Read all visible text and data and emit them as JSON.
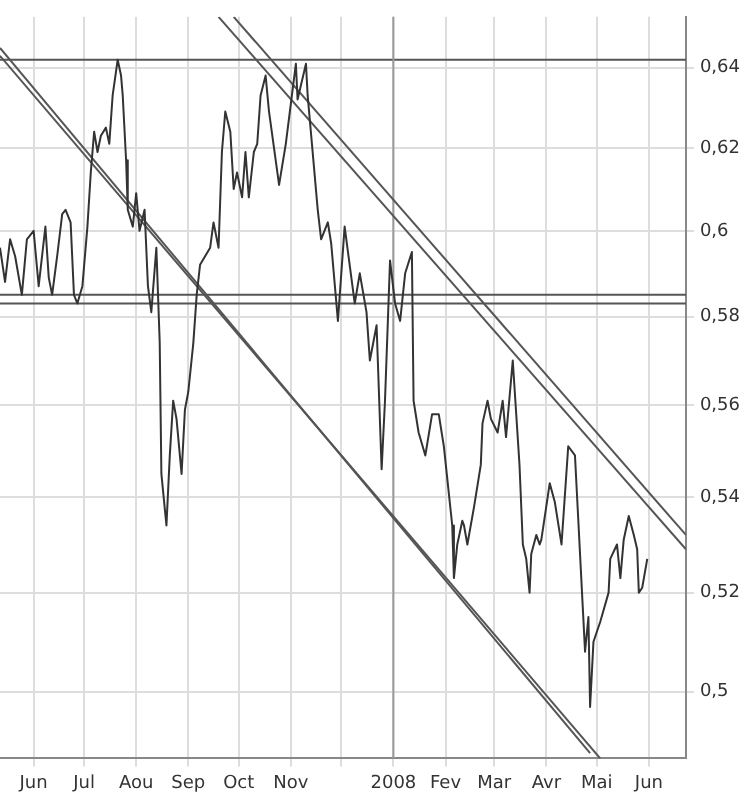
{
  "chart_data": {
    "type": "line",
    "xlim": [
      "2007-05-12",
      "2008-06-23"
    ],
    "xticks": [
      {
        "value": "2007-06-01",
        "label": "Jun"
      },
      {
        "value": "2007-07-01",
        "label": "Jul"
      },
      {
        "value": "2007-08-01",
        "label": "Aou"
      },
      {
        "value": "2007-09-01",
        "label": "Sep"
      },
      {
        "value": "2007-10-01",
        "label": "Oct"
      },
      {
        "value": "2007-11-01",
        "label": "Nov"
      },
      {
        "value": "2007-12-01",
        "label": null
      },
      {
        "value": "2008-01-01",
        "label": "2008"
      },
      {
        "value": "2008-02-01",
        "label": "Fev"
      },
      {
        "value": "2008-03-01",
        "label": "Mar"
      },
      {
        "value": "2008-04-01",
        "label": "Avr"
      },
      {
        "value": "2008-05-01",
        "label": "Mai"
      },
      {
        "value": "2008-06-01",
        "label": "Jun"
      }
    ],
    "ylim": [
      0.487,
      0.653
    ],
    "yticks": [
      {
        "value": 0.5,
        "label": "0,5"
      },
      {
        "value": 0.52,
        "label": "0,52"
      },
      {
        "value": 0.54,
        "label": "0,54"
      },
      {
        "value": 0.56,
        "label": "0,56"
      },
      {
        "value": 0.58,
        "label": "0,58"
      },
      {
        "value": 0.6,
        "label": "0,6"
      },
      {
        "value": 0.62,
        "label": "0,62"
      },
      {
        "value": 0.64,
        "label": "0,64"
      }
    ],
    "log": true,
    "grid": true,
    "legend": false,
    "marker": "none",
    "line_style": "solid",
    "ref_lines": [
      {
        "axis": "y",
        "value": 0.642,
        "color": "#555555"
      },
      {
        "axis": "y",
        "value": 0.585,
        "color": "#555555"
      },
      {
        "axis": "y",
        "value": 0.583,
        "color": "#555555"
      },
      {
        "axis": "x",
        "value": "2008-01-01",
        "color": "#999999"
      }
    ],
    "series": [
      {
        "color": "#333333",
        "x": [
          "2007-05-12",
          "2007-05-15",
          "2007-05-18",
          "2007-05-21",
          "2007-05-25",
          "2007-05-28",
          "2007-06-01",
          "2007-06-04",
          "2007-06-08",
          "2007-06-10",
          "2007-06-12",
          "2007-06-15",
          "2007-06-18",
          "2007-06-20",
          "2007-06-23",
          "2007-06-25",
          "2007-06-27",
          "2007-06-30",
          "2007-07-03",
          "2007-07-05",
          "2007-07-07",
          "2007-07-09",
          "2007-07-11",
          "2007-07-14",
          "2007-07-16",
          "2007-07-18",
          "2007-07-21",
          "2007-07-23",
          "2007-07-24",
          "2007-07-26",
          "2007-07-27",
          "2007-07-30",
          "2007-08-01",
          "2007-08-03",
          "2007-08-06",
          "2007-08-08",
          "2007-08-10",
          "2007-08-13",
          "2007-08-15",
          "2007-08-16",
          "2007-08-19",
          "2007-08-21",
          "2007-08-23",
          "2007-08-25",
          "2007-08-28",
          "2007-08-30",
          "2007-09-01",
          "2007-09-04",
          "2007-09-06",
          "2007-09-08",
          "2007-09-11",
          "2007-09-14",
          "2007-09-16",
          "2007-09-19",
          "2007-09-21",
          "2007-09-23",
          "2007-09-26",
          "2007-09-28",
          "2007-09-30",
          "2007-10-03",
          "2007-10-05",
          "2007-10-07",
          "2007-10-10",
          "2007-10-12",
          "2007-10-14",
          "2007-10-17",
          "2007-10-19",
          "2007-10-25",
          "2007-10-29",
          "2007-11-04",
          "2007-11-05",
          "2007-11-10",
          "2007-11-11",
          "2007-11-17",
          "2007-11-19",
          "2007-11-23",
          "2007-11-25",
          "2007-11-29",
          "2007-12-03",
          "2007-12-09",
          "2007-12-12",
          "2007-12-16",
          "2007-12-18",
          "2007-12-22",
          "2007-12-25",
          "2007-12-27",
          "2007-12-30",
          "2008-01-02",
          "2008-01-05",
          "2008-01-08",
          "2008-01-12",
          "2008-01-13",
          "2008-01-16",
          "2008-01-20",
          "2008-01-24",
          "2008-01-28",
          "2008-01-31",
          "2008-02-05",
          "2008-02-06",
          "2008-02-08",
          "2008-02-11",
          "2008-02-12",
          "2008-02-14",
          "2008-02-18",
          "2008-02-22",
          "2008-02-23",
          "2008-02-26",
          "2008-02-28",
          "2008-03-03",
          "2008-03-06",
          "2008-03-08",
          "2008-03-12",
          "2008-03-16",
          "2008-03-18",
          "2008-03-20",
          "2008-03-22",
          "2008-03-23",
          "2008-03-26",
          "2008-03-28",
          "2008-03-29",
          "2008-04-03",
          "2008-04-06",
          "2008-04-10",
          "2008-04-14",
          "2008-04-18",
          "2008-04-24",
          "2008-04-26",
          "2008-04-27",
          "2008-04-29",
          "2008-05-03",
          "2008-05-08",
          "2008-05-09",
          "2008-05-13",
          "2008-05-15",
          "2008-05-17",
          "2008-05-20",
          "2008-05-23",
          "2008-05-25",
          "2008-05-26",
          "2008-05-28",
          "2008-05-31"
        ],
        "values": [
          0.596,
          0.588,
          0.598,
          0.594,
          0.585,
          0.598,
          0.6,
          0.587,
          0.601,
          0.589,
          0.585,
          0.594,
          0.604,
          0.605,
          0.602,
          0.585,
          0.583,
          0.587,
          0.601,
          0.614,
          0.624,
          0.619,
          0.623,
          0.625,
          0.621,
          0.633,
          0.642,
          0.638,
          0.633,
          0.617,
          0.605,
          0.601,
          0.609,
          0.6,
          0.605,
          0.587,
          0.581,
          0.596,
          0.574,
          0.545,
          0.534,
          0.549,
          0.561,
          0.557,
          0.545,
          0.559,
          0.563,
          0.574,
          0.585,
          0.592,
          0.594,
          0.596,
          0.602,
          0.596,
          0.619,
          0.629,
          0.624,
          0.61,
          0.614,
          0.608,
          0.619,
          0.608,
          0.619,
          0.621,
          0.633,
          0.638,
          0.629,
          0.611,
          0.621,
          0.641,
          0.632,
          0.641,
          0.633,
          0.605,
          0.598,
          0.602,
          0.597,
          0.579,
          0.601,
          0.583,
          0.59,
          0.581,
          0.57,
          0.578,
          0.546,
          0.561,
          0.593,
          0.583,
          0.579,
          0.59,
          0.595,
          0.561,
          0.554,
          0.549,
          0.558,
          0.558,
          0.551,
          0.534,
          0.523,
          0.53,
          0.535,
          0.534,
          0.53,
          0.538,
          0.547,
          0.556,
          0.561,
          0.557,
          0.554,
          0.561,
          0.553,
          0.57,
          0.547,
          0.53,
          0.527,
          0.52,
          0.528,
          0.532,
          0.53,
          0.531,
          0.543,
          0.539,
          0.53,
          0.551,
          0.549,
          0.508,
          0.515,
          0.497,
          0.51,
          0.514,
          0.52,
          0.527,
          0.53,
          0.523,
          0.531,
          0.536,
          0.532,
          0.529,
          0.52,
          0.521,
          0.527
        ]
      },
      {
        "color": "#555555",
        "x": [
          "2007-09-28",
          "2008-06-23"
        ],
        "values": [
          0.653,
          0.532
        ]
      },
      {
        "color": "#555555",
        "x": [
          "2007-09-19",
          "2008-06-23"
        ],
        "values": [
          0.653,
          0.529
        ]
      },
      {
        "color": "#555555",
        "x": [
          "2007-05-12",
          "2008-04-27"
        ],
        "values": [
          0.645,
          0.488
        ]
      },
      {
        "color": "#555555",
        "x": [
          "2007-05-12",
          "2008-05-03"
        ],
        "values": [
          0.643,
          0.487
        ]
      }
    ]
  }
}
